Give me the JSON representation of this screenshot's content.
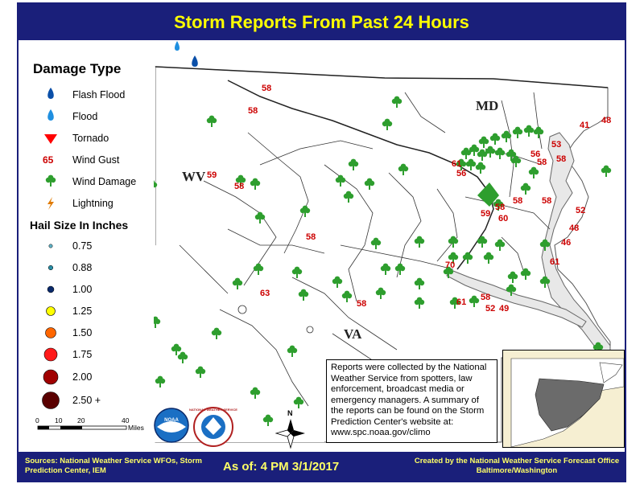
{
  "title": "Storm Reports From Past 24 Hours",
  "legend": {
    "damage_title": "Damage Type",
    "damage_items": [
      {
        "label": "Flash Flood",
        "icon": "flash-flood-drop-icon",
        "color": "#0a4fa8"
      },
      {
        "label": "Flood",
        "icon": "flood-drop-icon",
        "color": "#1f8fe0"
      },
      {
        "label": "Tornado",
        "icon": "tornado-triangle-icon",
        "color": "#ff0000"
      },
      {
        "label": "Wind Gust",
        "icon": "wind-gust-number",
        "symbol": "65",
        "color": "#cc0000"
      },
      {
        "label": "Wind Damage",
        "icon": "tree-icon",
        "color": "#2e9e2e"
      },
      {
        "label": "Lightning",
        "icon": "lightning-bolt-icon",
        "color": "#e07a00"
      }
    ],
    "hail_title": "Hail Size In Inches",
    "hail_items": [
      {
        "label": "0.75",
        "color": "#5fb3c8"
      },
      {
        "label": "0.88",
        "color": "#2a8ea6"
      },
      {
        "label": "1.00",
        "color": "#0a2a6b"
      },
      {
        "label": "1.25",
        "color": "#ffff00"
      },
      {
        "label": "1.50",
        "color": "#ff6600"
      },
      {
        "label": "1.75",
        "color": "#ff1a1a"
      },
      {
        "label": "2.00",
        "color": "#a00000"
      },
      {
        "label": "2.50 +",
        "color": "#5a0000"
      }
    ]
  },
  "scale_bar": {
    "ticks": [
      "0",
      "10",
      "20",
      "40"
    ],
    "unit": "Miles"
  },
  "state_labels": {
    "md": "MD",
    "wv": "WV",
    "va": "VA"
  },
  "wind_gusts": [
    "58",
    "58",
    "58",
    "59",
    "58",
    "63",
    "58",
    "61",
    "56",
    "58",
    "58",
    "60",
    "59",
    "70",
    "61",
    "58",
    "52",
    "49",
    "56",
    "53",
    "58",
    "58",
    "41",
    "48",
    "52",
    "48",
    "46",
    "61"
  ],
  "info_text": "Reports were collected by the National Weather Service from spotters, law enforcement, broadcast media or emergency managers. A summary of the reports can be found  on the Storm Prediction Center's website at: www.spc.noaa.gov/climo",
  "logos": {
    "noaa": "NOAA",
    "nws": "NATIONAL WEATHER SERVICE"
  },
  "compass": "N",
  "footer": {
    "sources": "Sources: National Weather Service WFOs, Storm Prediction Center, IEM",
    "as_of": "As of: 4 PM 3/1/2017",
    "credit": "Created by the National Weather Service Forecast Office Baltimore/Washington"
  },
  "colors": {
    "frame": "#1a1f7a",
    "title": "#ffff00",
    "footer_text": "#ffff66",
    "gust": "#cc0000",
    "tree": "#2e9e2e"
  }
}
